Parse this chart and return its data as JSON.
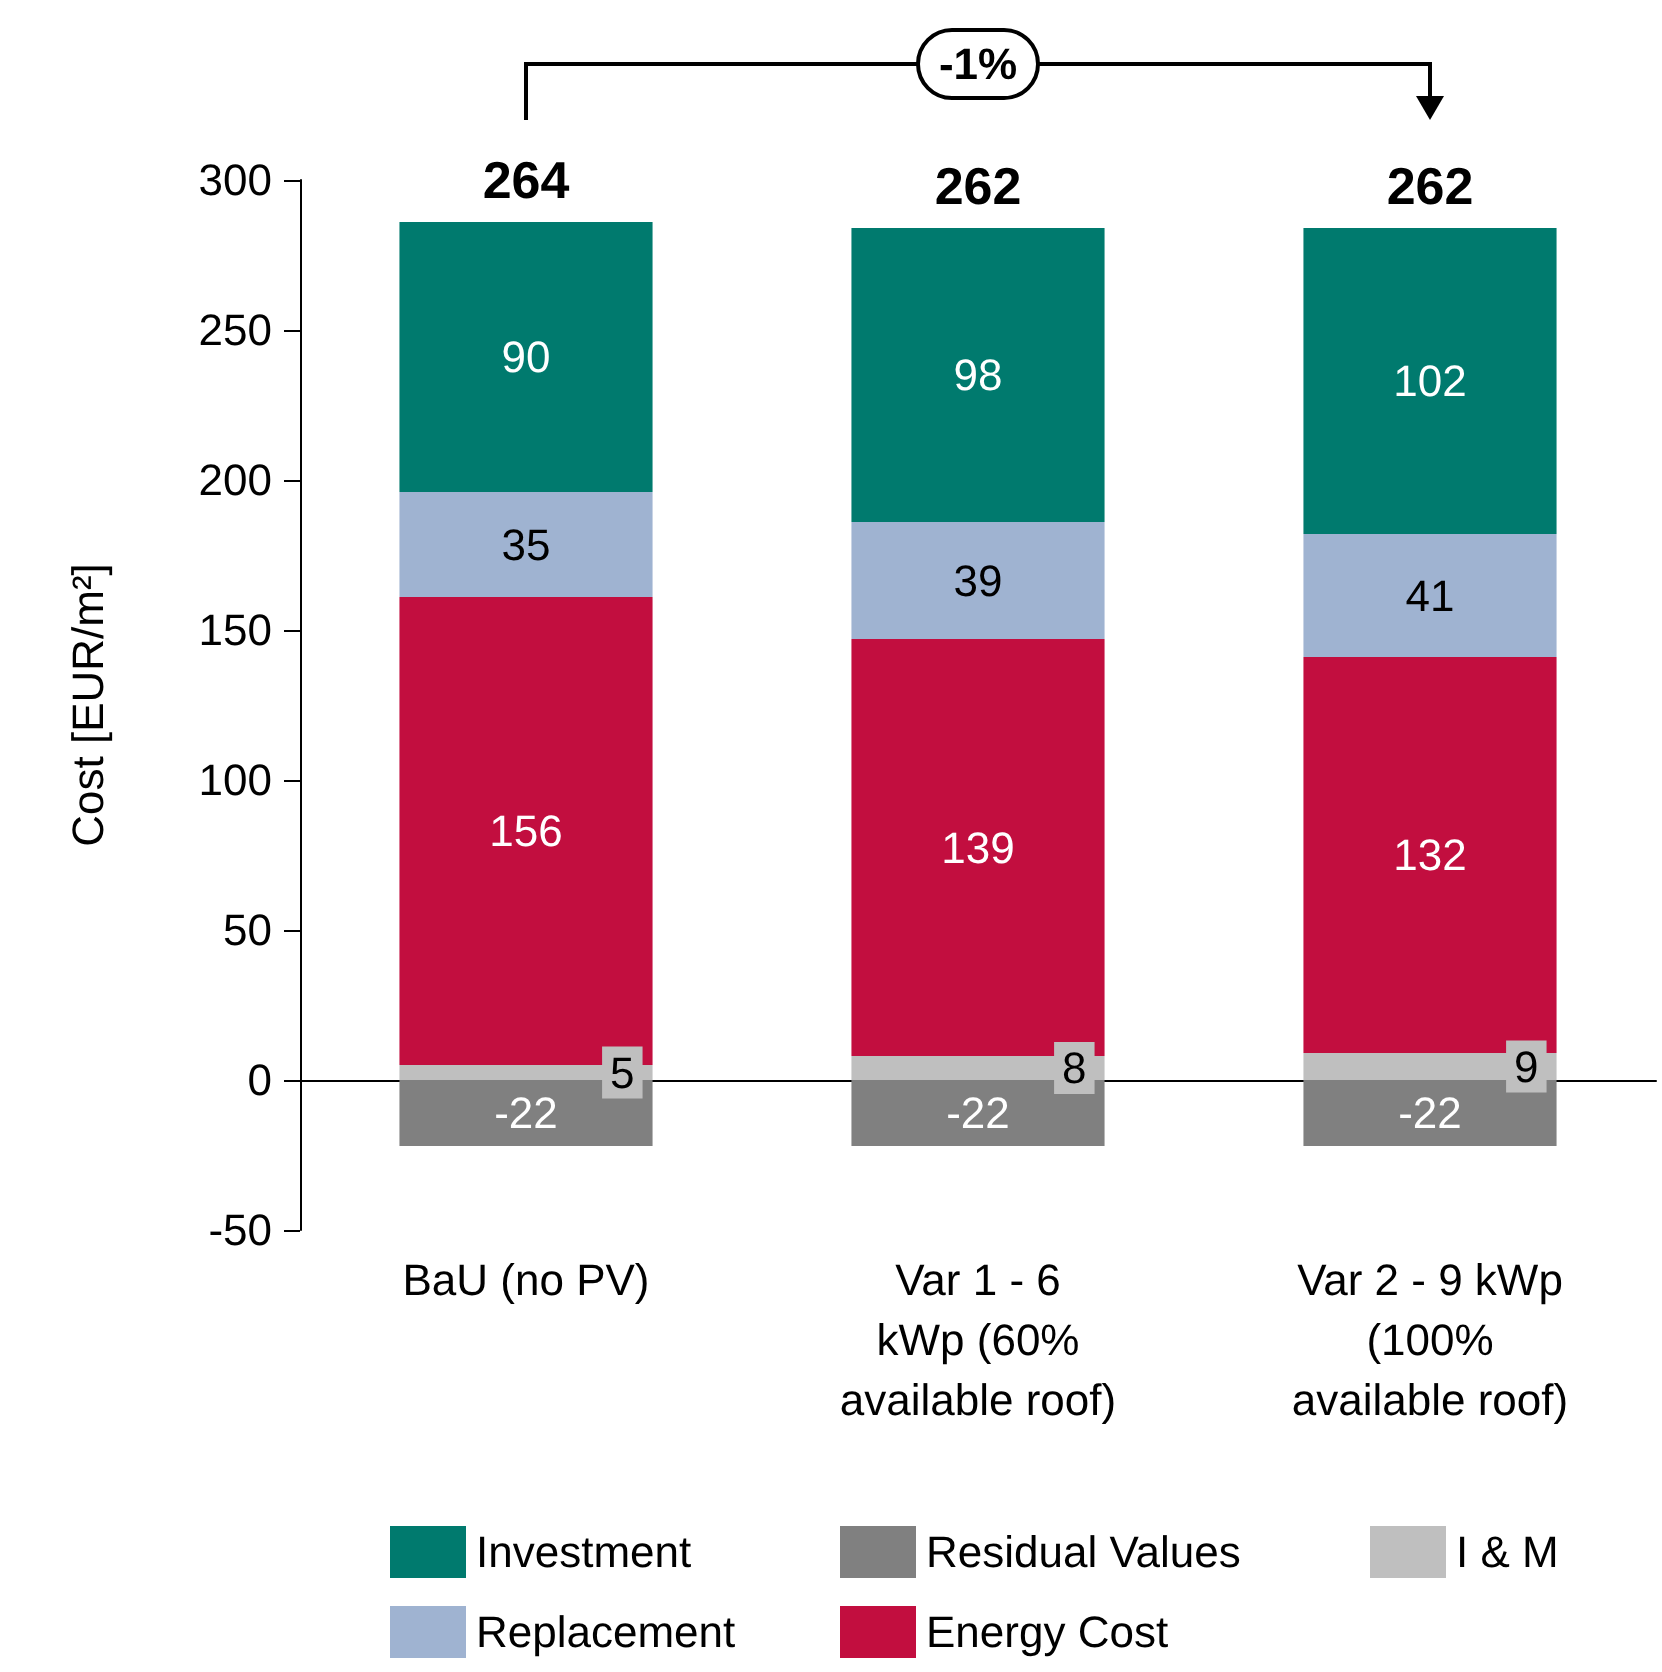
{
  "chart_data": {
    "type": "bar",
    "stacked": true,
    "ylabel": "Cost [EUR/m²]",
    "categories": [
      "BaU (no PV)",
      "Var 1 - 6\nkWp (60%\navailable roof)",
      "Var 2 - 9 kWp\n(100%\navailable roof)"
    ],
    "series": [
      {
        "name": "I & M",
        "color": "#bfbfbf",
        "values": [
          5,
          8,
          9
        ]
      },
      {
        "name": "Energy Cost",
        "color": "#c20e3f",
        "values": [
          156,
          139,
          132
        ]
      },
      {
        "name": "Replacement",
        "color": "#9fb3d1",
        "values": [
          35,
          39,
          41
        ]
      },
      {
        "name": "Investment",
        "color": "#007a6e",
        "values": [
          90,
          98,
          102
        ]
      },
      {
        "name": "Residual Values",
        "color": "#808080",
        "values": [
          -22,
          -22,
          -22
        ]
      }
    ],
    "totals": [
      "264",
      "262",
      "262"
    ],
    "annotations": [
      "-1%"
    ],
    "data_labels": true,
    "legend": "bottom",
    "ylim": [
      -50,
      300
    ],
    "yticks": [
      -50,
      0,
      50,
      100,
      150,
      200,
      250,
      300
    ]
  }
}
